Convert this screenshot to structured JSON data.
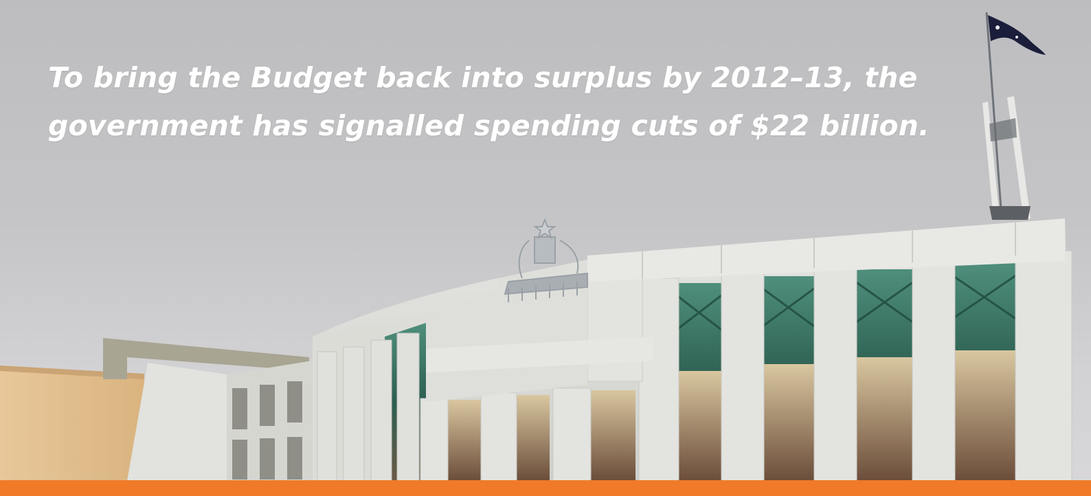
{
  "headline": {
    "line1": "To bring the Budget back into surplus by 2012–13, the",
    "line2": "government has signalled spending cuts of $22 billion."
  },
  "photo": {
    "subject-icon": "parliament-house-facade-icon",
    "flag-icon": "australian-flag-icon",
    "crest-icon": "coat-of-arms-icon"
  },
  "colors": {
    "sky": "#c4c4c6",
    "accent_bar": "#f07a28",
    "headline_text": "#ffffff",
    "stone": "#dcdcd8",
    "glass": "#2f6f5e"
  }
}
